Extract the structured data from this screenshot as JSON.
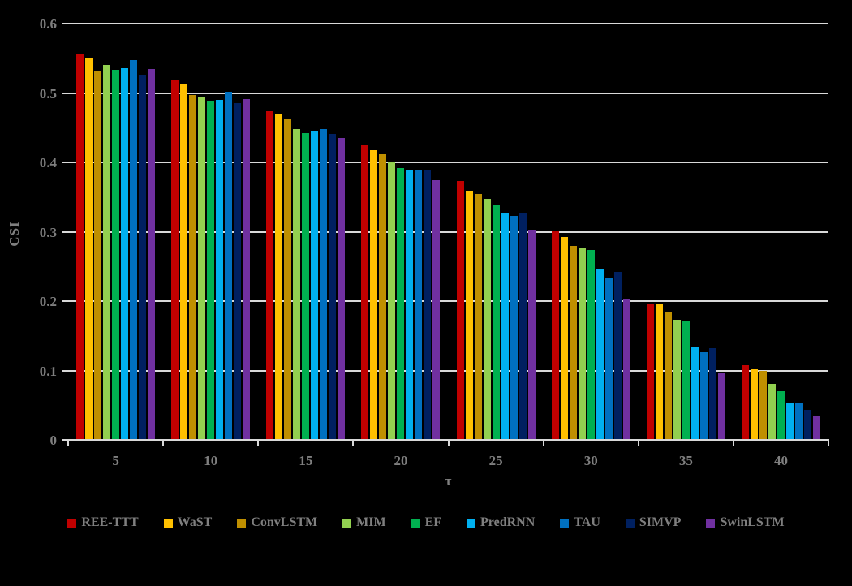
{
  "chart_data": {
    "type": "bar",
    "title": "",
    "xlabel": "τ",
    "ylabel": "CSI",
    "categories": [
      5,
      10,
      15,
      20,
      25,
      30,
      35,
      40
    ],
    "ylim": [
      0,
      0.6
    ],
    "yticks": [
      0,
      0.1,
      0.2,
      0.3,
      0.4,
      0.5,
      0.6
    ],
    "grid": true,
    "legend_position": "bottom",
    "background_color": "#000000",
    "gridline_color": "#D9D9D9",
    "text_color": "#7F7F7F",
    "series": [
      {
        "name": "REE-TTT",
        "color": "#C00000",
        "values": [
          0.557,
          0.518,
          0.474,
          0.425,
          0.373,
          0.301,
          0.197,
          0.108
        ]
      },
      {
        "name": "WaST",
        "color": "#FFC000",
        "values": [
          0.551,
          0.512,
          0.469,
          0.418,
          0.359,
          0.293,
          0.197,
          0.102
        ]
      },
      {
        "name": "ConvLSTM",
        "color": "#BF8F00",
        "values": [
          0.531,
          0.497,
          0.462,
          0.412,
          0.355,
          0.28,
          0.185,
          0.1
        ]
      },
      {
        "name": "MIM",
        "color": "#92D050",
        "values": [
          0.54,
          0.494,
          0.448,
          0.4,
          0.347,
          0.277,
          0.173,
          0.081
        ]
      },
      {
        "name": "EF",
        "color": "#00B050",
        "values": [
          0.533,
          0.488,
          0.442,
          0.392,
          0.339,
          0.274,
          0.171,
          0.07
        ]
      },
      {
        "name": "PredRNN",
        "color": "#00B0F0",
        "values": [
          0.536,
          0.49,
          0.444,
          0.389,
          0.328,
          0.246,
          0.135,
          0.054
        ]
      },
      {
        "name": "TAU",
        "color": "#0070C0",
        "values": [
          0.548,
          0.502,
          0.448,
          0.39,
          0.323,
          0.233,
          0.126,
          0.054
        ]
      },
      {
        "name": "SIMVP",
        "color": "#002060",
        "values": [
          0.526,
          0.485,
          0.441,
          0.388,
          0.326,
          0.242,
          0.132,
          0.043
        ]
      },
      {
        "name": "SwinLSTM",
        "color": "#7030A0",
        "values": [
          0.535,
          0.491,
          0.435,
          0.374,
          0.303,
          0.202,
          0.096,
          0.035
        ]
      }
    ]
  }
}
